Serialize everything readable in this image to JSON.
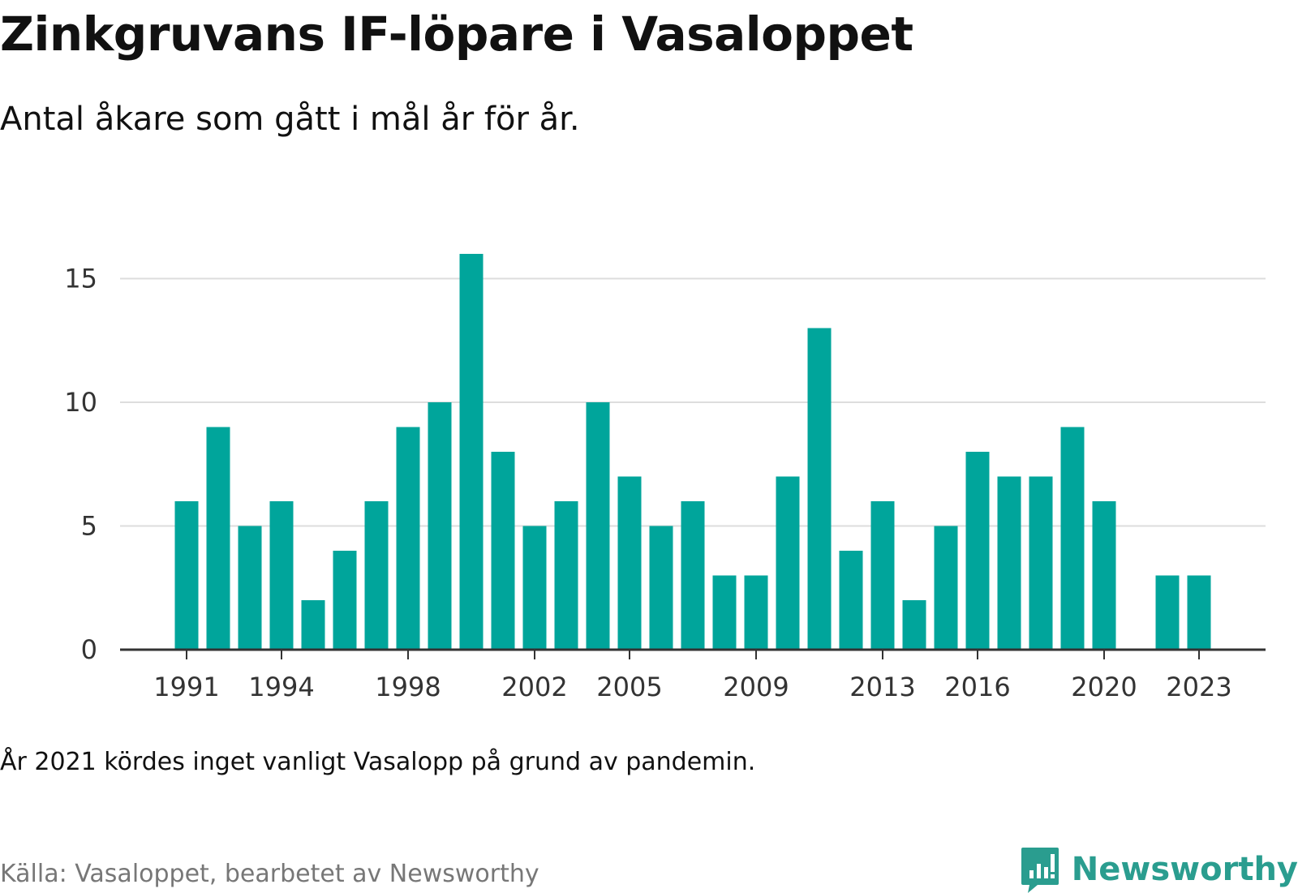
{
  "title": "Zinkgruvans IF-löpare i Vasaloppet",
  "subtitle": "Antal åkare som gått i mål år för år.",
  "note": "År 2021 kördes inget vanligt Vasalopp på grund av pandemin.",
  "source": "Källa: Vasaloppet, bearbetet av Newsworthy",
  "brand": {
    "name": "Newsworthy",
    "icon": "newsworthy-logo-icon",
    "color": "#2a9d8f"
  },
  "colors": {
    "bar": "#00a59b",
    "grid": "#dddddd",
    "axis": "#333333",
    "tick_text": "#333333"
  },
  "chart_data": {
    "type": "bar",
    "x": [
      1991,
      1992,
      1993,
      1994,
      1995,
      1996,
      1997,
      1998,
      1999,
      2000,
      2001,
      2002,
      2003,
      2004,
      2005,
      2006,
      2007,
      2008,
      2009,
      2010,
      2011,
      2012,
      2013,
      2014,
      2015,
      2016,
      2017,
      2018,
      2019,
      2020,
      2021,
      2022,
      2023
    ],
    "values": [
      6,
      9,
      5,
      6,
      2,
      4,
      6,
      9,
      10,
      16,
      8,
      5,
      6,
      10,
      7,
      5,
      6,
      3,
      3,
      7,
      13,
      4,
      6,
      2,
      5,
      8,
      7,
      7,
      9,
      6,
      null,
      3,
      3
    ],
    "x_tick_labels": [
      "1991",
      "1994",
      "1998",
      "2002",
      "2005",
      "2009",
      "2013",
      "2016",
      "2020",
      "2023"
    ],
    "y_ticks": [
      0,
      5,
      10,
      15
    ],
    "ylim": [
      0,
      16
    ],
    "grid": true,
    "legend": "none",
    "xlabel": "",
    "ylabel": ""
  }
}
